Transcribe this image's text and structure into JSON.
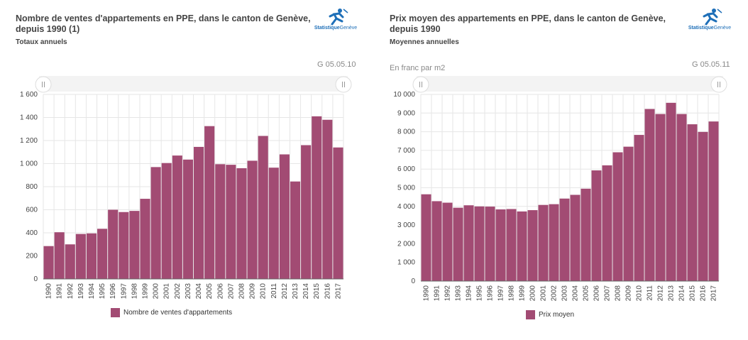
{
  "chart_data": [
    {
      "type": "bar",
      "title": "Nombre de ventes d'appartements en PPE, dans le canton de Genève, depuis 1990 (1)",
      "subtitle": "Totaux annuels",
      "code": "G 05.05.10",
      "unit_label": "",
      "categories": [
        "1990",
        "1991",
        "1992",
        "1993",
        "1994",
        "1995",
        "1996",
        "1997",
        "1998",
        "1999",
        "2000",
        "2001",
        "2002",
        "2003",
        "2004",
        "2005",
        "2006",
        "2007",
        "2008",
        "2009",
        "2010",
        "2011",
        "2012",
        "2013",
        "2014",
        "2015",
        "2016",
        "2017"
      ],
      "series": [
        {
          "name": "Nombre de ventes d'appartements",
          "values": [
            285,
            405,
            300,
            390,
            395,
            435,
            600,
            580,
            590,
            695,
            970,
            1005,
            1070,
            1035,
            1145,
            1325,
            995,
            990,
            960,
            1025,
            1240,
            965,
            1080,
            845,
            1160,
            1410,
            1380,
            1140
          ]
        }
      ],
      "yticks": [
        0,
        200,
        400,
        600,
        800,
        1000,
        1200,
        1400,
        1600
      ],
      "ytick_labels": [
        "0",
        "200",
        "400",
        "600",
        "800",
        "1 000",
        "1 200",
        "1 400",
        "1 600"
      ],
      "ylim": [
        0,
        1600
      ],
      "color": "#a24b73",
      "legend_position": "bottom-center",
      "grid": true
    },
    {
      "type": "bar",
      "title": "Prix moyen des appartements en PPE, dans le canton de Genève, depuis 1990",
      "subtitle": "Moyennes annuelles",
      "code": "G 05.05.11",
      "unit_label": "En franc par m2",
      "categories": [
        "1990",
        "1991",
        "1992",
        "1993",
        "1994",
        "1995",
        "1996",
        "1997",
        "1998",
        "1999",
        "2000",
        "2001",
        "2002",
        "2003",
        "2004",
        "2005",
        "2006",
        "2007",
        "2008",
        "2009",
        "2010",
        "2011",
        "2012",
        "2013",
        "2014",
        "2015",
        "2016",
        "2017"
      ],
      "series": [
        {
          "name": "Prix moyen",
          "values": [
            4650,
            4280,
            4200,
            3930,
            4060,
            4000,
            3990,
            3840,
            3860,
            3730,
            3800,
            4080,
            4120,
            4420,
            4620,
            4950,
            5930,
            6200,
            6900,
            7200,
            7830,
            9220,
            8950,
            9550,
            8950,
            8400,
            7990,
            8550
          ]
        }
      ],
      "yticks": [
        0,
        1000,
        2000,
        3000,
        4000,
        5000,
        6000,
        7000,
        8000,
        9000,
        10000
      ],
      "ytick_labels": [
        "0",
        "1 000",
        "2 000",
        "3 000",
        "4 000",
        "5 000",
        "6 000",
        "7 000",
        "8 000",
        "9 000",
        "10 000"
      ],
      "ylim": [
        0,
        10000
      ],
      "color": "#a24b73",
      "legend_position": "bottom-center",
      "grid": true
    }
  ],
  "logo": {
    "brand": "Statistique",
    "brand2": "Genève"
  },
  "colors": {
    "bar": "#a24b73",
    "logo": "#1e6fb8"
  },
  "icons": {
    "logo": "runner-logo-icon",
    "handle": "scroll-handle-icon"
  }
}
